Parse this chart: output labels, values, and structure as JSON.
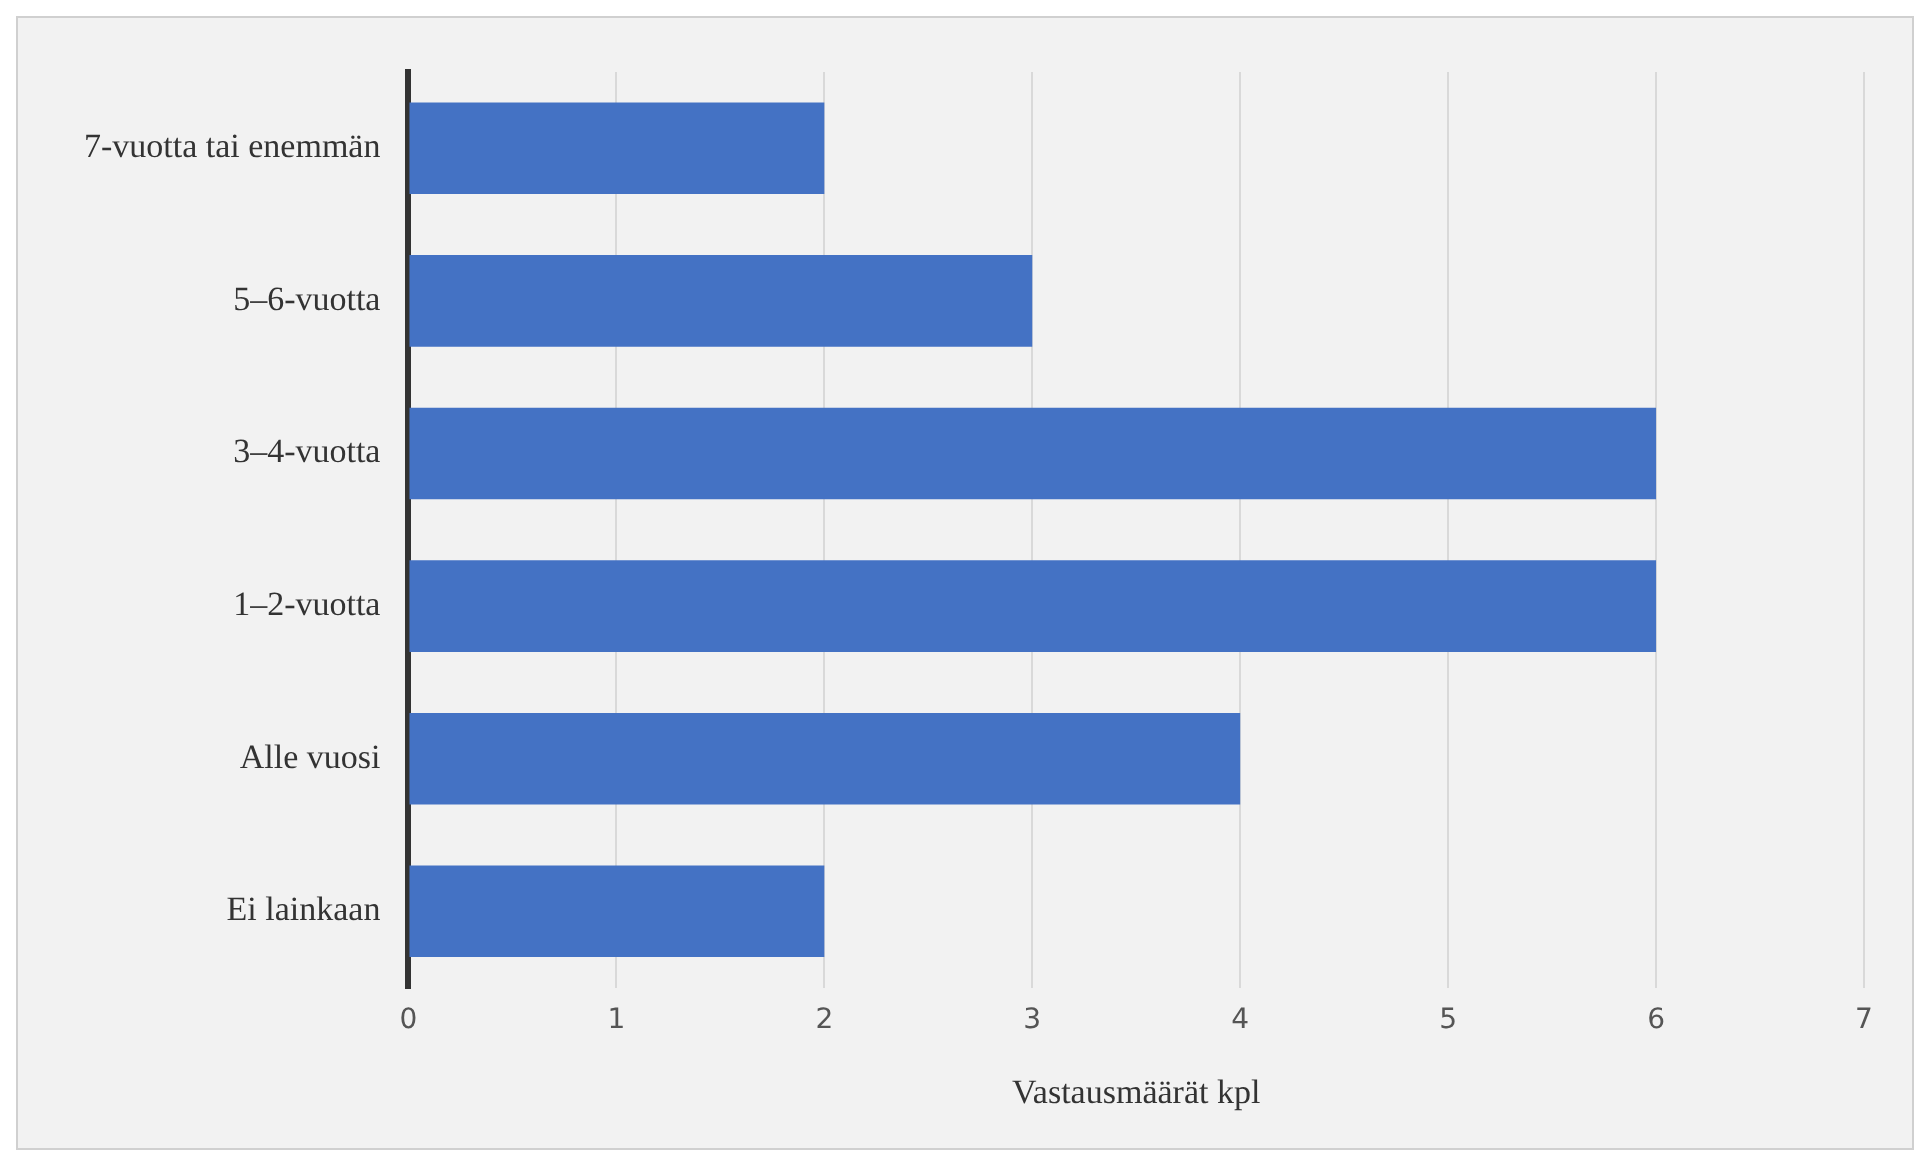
{
  "chart_data": {
    "type": "bar",
    "orientation": "horizontal",
    "xlabel": "Vastausmäärät kpl",
    "categories": [
      "7-vuotta tai enemmän",
      "5–6-vuotta",
      "3–4-vuotta",
      "1–2-vuotta",
      "Alle vuosi",
      "Ei lainkaan"
    ],
    "values": [
      2,
      3,
      6,
      6,
      4,
      2
    ],
    "color": "#4472c4",
    "xlim": [
      0,
      7
    ],
    "xticks": [
      0,
      1,
      2,
      3,
      4,
      5,
      6,
      7
    ],
    "grid": "x",
    "legend": false
  }
}
